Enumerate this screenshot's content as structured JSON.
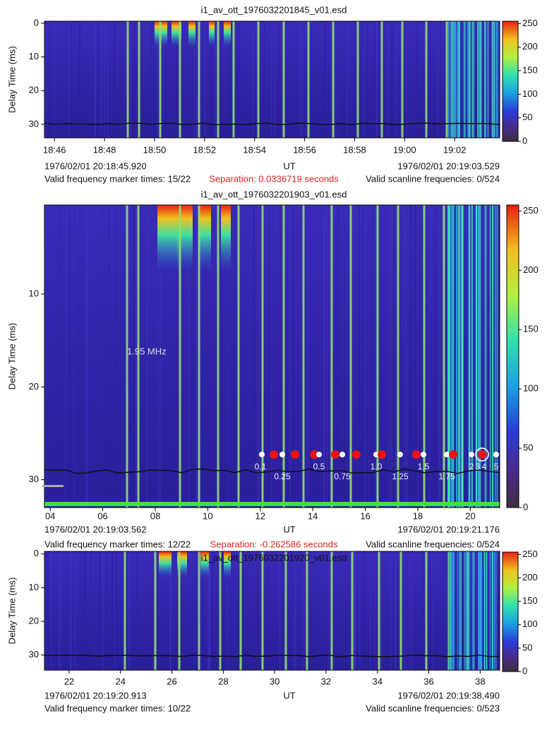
{
  "chart_data": [
    {
      "type": "heatmap",
      "title": "i1_av_ott_1976032201845_v01.esd",
      "xlabel": "UT",
      "ylabel": "Delay Time (ms)",
      "start_time": "1976/02/01 20:18:45.920",
      "end_time": "1976/02/01 20:19:03.529",
      "marker_status": "Valid frequency marker times: 15/22",
      "separation": "Separation: 0.0336719 seconds",
      "scanline_status": "Valid scanline frequencies: 0/524",
      "xlim": [
        1125.6,
        1143.8
      ],
      "xticks": [
        {
          "value": 1126,
          "label": "18:46"
        },
        {
          "value": 1128,
          "label": "18:48"
        },
        {
          "value": 1130,
          "label": "18:50"
        },
        {
          "value": 1132,
          "label": "18:52"
        },
        {
          "value": 1134,
          "label": "18:54"
        },
        {
          "value": 1136,
          "label": "18:56"
        },
        {
          "value": 1138,
          "label": "18:58"
        },
        {
          "value": 1140,
          "label": "19:00"
        },
        {
          "value": 1142,
          "label": "19:02"
        }
      ],
      "ylim": [
        34,
        -0.6
      ],
      "yticks": [
        0,
        10,
        20,
        30
      ],
      "colorbar": {
        "zlim": [
          0,
          255
        ],
        "ticks": [
          0,
          50,
          100,
          150,
          200,
          250
        ]
      }
    },
    {
      "type": "heatmap",
      "title": "i1_av_ott_1976032201903_v01.esd",
      "xlabel": "UT",
      "ylabel": "Delay Time (ms)",
      "start_time": "1976/02/01 20:19:03.562",
      "end_time": "1976/02/01 20:19:21.176",
      "marker_status": "Valid frequency marker times: 12/22",
      "separation": "Separation: -0.262586 seconds",
      "scanline_status": "Valid scanline frequencies: 0/524",
      "xlim": [
        1143.78,
        1161.12
      ],
      "xticks": [
        {
          "value": 1144,
          "label": "04"
        },
        {
          "value": 1146,
          "label": "06"
        },
        {
          "value": 1148,
          "label": "08"
        },
        {
          "value": 1150,
          "label": "10"
        },
        {
          "value": 1152,
          "label": "12"
        },
        {
          "value": 1154,
          "label": "14"
        },
        {
          "value": 1156,
          "label": "16"
        },
        {
          "value": 1158,
          "label": "18"
        },
        {
          "value": 1160,
          "label": "20"
        }
      ],
      "ylim": [
        33,
        0.4
      ],
      "yticks": [
        10,
        20,
        30
      ],
      "colorbar": {
        "zlim": [
          0,
          255
        ],
        "ticks": [
          0,
          50,
          100,
          150,
          200,
          250
        ]
      },
      "annotation": "1.95 MHz",
      "frequency_labels": [
        "0.1",
        "0.25",
        "0.5",
        "0.75",
        "1.0",
        "1.25",
        "1.5",
        "1.75",
        "2",
        "3",
        "4",
        "5"
      ]
    },
    {
      "type": "heatmap",
      "title": "i1_av_ott_1976032201920_v01.esd",
      "xlabel": "UT",
      "ylabel": "Delay Time (ms)",
      "start_time": "1976/02/01 20:19:20.913",
      "end_time": "1976/02/01 20:19:38.490",
      "marker_status": "Valid frequency marker times: 10/22",
      "scanline_status": "Valid scanline frequencies: 0/523",
      "xlim": [
        1161.04,
        1178.76
      ],
      "xticks": [
        {
          "value": 1162,
          "label": "22"
        },
        {
          "value": 1164,
          "label": "24"
        },
        {
          "value": 1166,
          "label": "26"
        },
        {
          "value": 1168,
          "label": "28"
        },
        {
          "value": 1170,
          "label": "30"
        },
        {
          "value": 1172,
          "label": "32"
        },
        {
          "value": 1174,
          "label": "34"
        },
        {
          "value": 1176,
          "label": "36"
        },
        {
          "value": 1178,
          "label": "38"
        }
      ],
      "ylim": [
        34.5,
        -0.8
      ],
      "yticks": [
        0,
        10,
        20,
        30
      ],
      "colorbar": {
        "zlim": [
          0,
          255
        ],
        "ticks": [
          0,
          50,
          100,
          150,
          200,
          250
        ]
      }
    }
  ]
}
